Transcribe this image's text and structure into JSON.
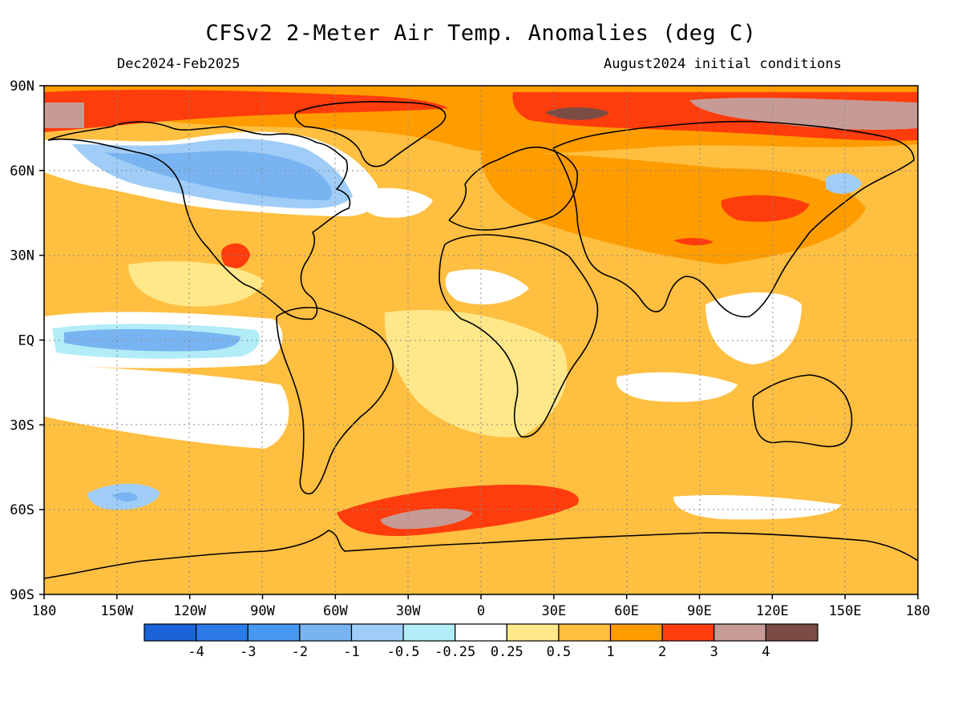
{
  "header": {
    "title": "CFSv2 2-Meter Air Temp. Anomalies (deg C)",
    "season": "Dec2024-Feb2025",
    "initial_conditions": "August2024 initial conditions"
  },
  "axes": {
    "lat_labels": [
      "90N",
      "60N",
      "30N",
      "EQ",
      "30S",
      "60S",
      "90S"
    ],
    "lat_values": [
      90,
      60,
      30,
      0,
      -30,
      -60,
      -90
    ],
    "lon_labels": [
      "180",
      "150W",
      "120W",
      "90W",
      "60W",
      "30W",
      "0",
      "30E",
      "60E",
      "90E",
      "120E",
      "150E",
      "180"
    ],
    "lon_values": [
      -180,
      -150,
      -120,
      -90,
      -60,
      -30,
      0,
      30,
      60,
      90,
      120,
      150,
      180
    ],
    "grid": "dotted"
  },
  "colorbar": {
    "labels": [
      "-4",
      "-3",
      "-2",
      "-1",
      "-0.5",
      "-0.25",
      "0.25",
      "0.5",
      "1",
      "2",
      "3",
      "4"
    ],
    "colors": [
      "#1a63d8",
      "#2c7be8",
      "#4698f0",
      "#79b4f2",
      "#9fcdf7",
      "#b2ecf7",
      "#ffffff",
      "#ffe88a",
      "#ffbf40",
      "#ff9c00",
      "#ff3c0c",
      "#c69b96",
      "#7a4c44"
    ]
  }
}
